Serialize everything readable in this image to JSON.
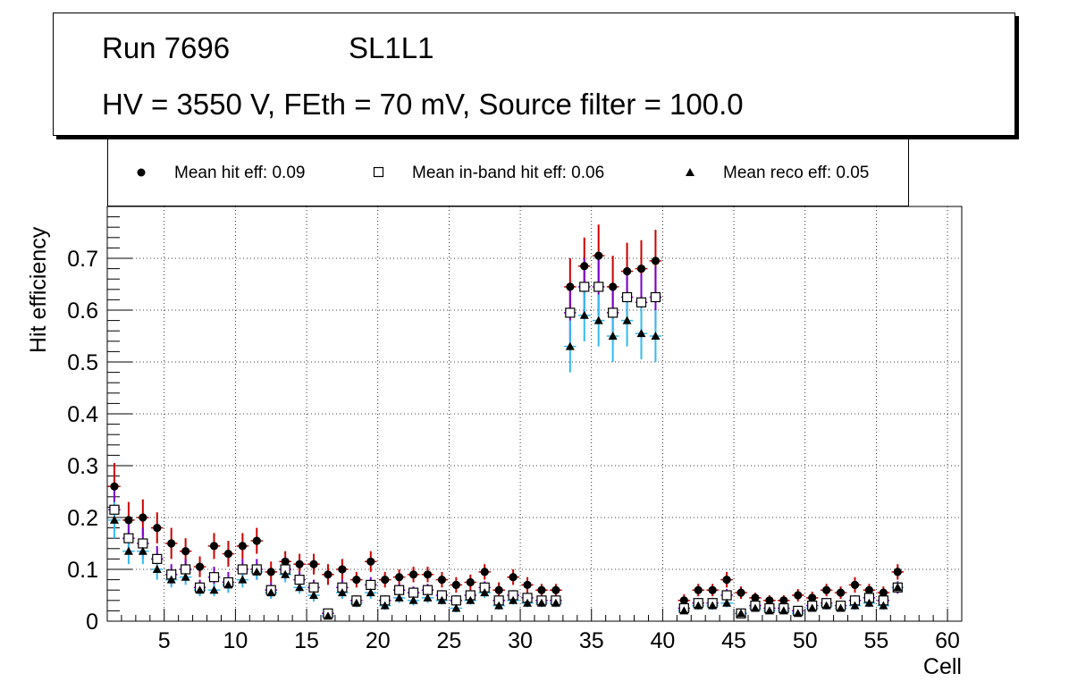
{
  "title": {
    "run_label": "Run 7696",
    "layer_label": "SL1L1",
    "conditions": "HV = 3550 V, FEth = 70 mV, Source filter = 100.0"
  },
  "legend": {
    "hit": "Mean hit  eff: 0.09",
    "inband": "Mean in-band hit eff: 0.06",
    "reco": "Mean reco eff: 0.05"
  },
  "chart_data": {
    "type": "scatter",
    "xlabel": "Cell",
    "ylabel": "Hit efficiency",
    "xlim": [
      1,
      61
    ],
    "ylim": [
      0,
      0.8
    ],
    "xticks": [
      5,
      10,
      15,
      20,
      25,
      30,
      35,
      40,
      45,
      50,
      55,
      60
    ],
    "yticks": [
      0,
      0.1,
      0.2,
      0.3,
      0.4,
      0.5,
      0.6,
      0.7
    ],
    "ytick_labels": [
      "0",
      "0.1",
      "0.2",
      "0.3",
      "0.4",
      "0.5",
      "0.6",
      "0.7"
    ],
    "grid": true,
    "series": [
      {
        "name": "Mean hit  eff: 0.09",
        "marker": "circle",
        "color": "#000000",
        "error_color": "#cc0000",
        "x": [
          1.5,
          2.5,
          3.5,
          4.5,
          5.5,
          6.5,
          7.5,
          8.5,
          9.5,
          10.5,
          11.5,
          12.5,
          13.5,
          14.5,
          15.5,
          16.5,
          17.5,
          18.5,
          19.5,
          20.5,
          21.5,
          22.5,
          23.5,
          24.5,
          25.5,
          26.5,
          27.5,
          28.5,
          29.5,
          30.5,
          31.5,
          32.5,
          33.5,
          34.5,
          35.5,
          36.5,
          37.5,
          38.5,
          39.5,
          41.5,
          42.5,
          43.5,
          44.5,
          45.5,
          46.5,
          47.5,
          48.5,
          49.5,
          50.5,
          51.5,
          52.5,
          53.5,
          54.5,
          55.5,
          56.5
        ],
        "y": [
          0.26,
          0.195,
          0.2,
          0.18,
          0.15,
          0.135,
          0.105,
          0.145,
          0.13,
          0.145,
          0.155,
          0.095,
          0.115,
          0.11,
          0.11,
          0.09,
          0.1,
          0.08,
          0.115,
          0.08,
          0.085,
          0.09,
          0.09,
          0.08,
          0.07,
          0.075,
          0.095,
          0.06,
          0.085,
          0.07,
          0.06,
          0.06,
          0.645,
          0.685,
          0.705,
          0.645,
          0.675,
          0.68,
          0.695,
          0.04,
          0.06,
          0.06,
          0.08,
          0.055,
          0.045,
          0.04,
          0.04,
          0.05,
          0.045,
          0.06,
          0.055,
          0.07,
          0.06,
          0.055,
          0.095
        ],
        "yerr": [
          0.045,
          0.035,
          0.035,
          0.03,
          0.03,
          0.025,
          0.02,
          0.025,
          0.025,
          0.025,
          0.025,
          0.02,
          0.02,
          0.02,
          0.02,
          0.02,
          0.02,
          0.015,
          0.02,
          0.015,
          0.015,
          0.015,
          0.015,
          0.015,
          0.015,
          0.015,
          0.015,
          0.015,
          0.015,
          0.015,
          0.012,
          0.012,
          0.055,
          0.055,
          0.06,
          0.06,
          0.055,
          0.055,
          0.06,
          0.012,
          0.012,
          0.012,
          0.015,
          0.012,
          0.01,
          0.01,
          0.01,
          0.012,
          0.012,
          0.012,
          0.012,
          0.015,
          0.012,
          0.012,
          0.015
        ]
      },
      {
        "name": "Mean in-band hit eff: 0.06",
        "marker": "open-square",
        "color": "#000000",
        "error_color": "#7a00cc",
        "x": [
          1.5,
          2.5,
          3.5,
          4.5,
          5.5,
          6.5,
          7.5,
          8.5,
          9.5,
          10.5,
          11.5,
          12.5,
          13.5,
          14.5,
          15.5,
          16.5,
          17.5,
          18.5,
          19.5,
          20.5,
          21.5,
          22.5,
          23.5,
          24.5,
          25.5,
          26.5,
          27.5,
          28.5,
          29.5,
          30.5,
          31.5,
          32.5,
          33.5,
          34.5,
          35.5,
          36.5,
          37.5,
          38.5,
          39.5,
          41.5,
          42.5,
          43.5,
          44.5,
          45.5,
          46.5,
          47.5,
          48.5,
          49.5,
          50.5,
          51.5,
          52.5,
          53.5,
          54.5,
          55.5,
          56.5
        ],
        "y": [
          0.215,
          0.16,
          0.15,
          0.12,
          0.09,
          0.1,
          0.065,
          0.085,
          0.075,
          0.1,
          0.1,
          0.06,
          0.1,
          0.08,
          0.065,
          0.015,
          0.065,
          0.04,
          0.07,
          0.04,
          0.06,
          0.055,
          0.06,
          0.05,
          0.04,
          0.05,
          0.065,
          0.04,
          0.05,
          0.045,
          0.04,
          0.04,
          0.595,
          0.645,
          0.645,
          0.595,
          0.625,
          0.615,
          0.625,
          0.025,
          0.035,
          0.035,
          0.05,
          0.015,
          0.03,
          0.025,
          0.025,
          0.02,
          0.03,
          0.035,
          0.03,
          0.04,
          0.045,
          0.04,
          0.065
        ],
        "yerr": [
          0.04,
          0.03,
          0.03,
          0.025,
          0.02,
          0.02,
          0.015,
          0.02,
          0.02,
          0.02,
          0.02,
          0.015,
          0.02,
          0.015,
          0.015,
          0.008,
          0.015,
          0.01,
          0.015,
          0.01,
          0.012,
          0.012,
          0.012,
          0.01,
          0.01,
          0.01,
          0.012,
          0.01,
          0.01,
          0.01,
          0.01,
          0.01,
          0.055,
          0.055,
          0.055,
          0.055,
          0.055,
          0.055,
          0.06,
          0.008,
          0.01,
          0.01,
          0.012,
          0.006,
          0.008,
          0.008,
          0.008,
          0.008,
          0.008,
          0.01,
          0.008,
          0.01,
          0.01,
          0.01,
          0.012
        ]
      },
      {
        "name": "Mean reco eff: 0.05",
        "marker": "triangle",
        "color": "#000000",
        "error_color": "#33bbee",
        "x": [
          1.5,
          2.5,
          3.5,
          4.5,
          5.5,
          6.5,
          7.5,
          8.5,
          9.5,
          10.5,
          11.5,
          12.5,
          13.5,
          14.5,
          15.5,
          16.5,
          17.5,
          18.5,
          19.5,
          20.5,
          21.5,
          22.5,
          23.5,
          24.5,
          25.5,
          26.5,
          27.5,
          28.5,
          29.5,
          30.5,
          31.5,
          32.5,
          33.5,
          34.5,
          35.5,
          36.5,
          37.5,
          38.5,
          39.5,
          41.5,
          42.5,
          43.5,
          44.5,
          45.5,
          46.5,
          47.5,
          48.5,
          49.5,
          50.5,
          51.5,
          52.5,
          53.5,
          54.5,
          55.5,
          56.5
        ],
        "y": [
          0.195,
          0.135,
          0.135,
          0.1,
          0.08,
          0.085,
          0.06,
          0.06,
          0.07,
          0.08,
          0.095,
          0.055,
          0.09,
          0.065,
          0.05,
          0.01,
          0.055,
          0.035,
          0.055,
          0.03,
          0.045,
          0.04,
          0.045,
          0.04,
          0.025,
          0.04,
          0.055,
          0.03,
          0.04,
          0.035,
          0.035,
          0.035,
          0.53,
          0.59,
          0.58,
          0.55,
          0.58,
          0.555,
          0.55,
          0.02,
          0.03,
          0.03,
          0.035,
          0.015,
          0.025,
          0.02,
          0.02,
          0.015,
          0.025,
          0.03,
          0.025,
          0.03,
          0.035,
          0.03,
          0.065
        ],
        "yerr": [
          0.035,
          0.025,
          0.025,
          0.02,
          0.015,
          0.015,
          0.012,
          0.012,
          0.015,
          0.015,
          0.015,
          0.012,
          0.015,
          0.012,
          0.012,
          0.006,
          0.012,
          0.008,
          0.012,
          0.008,
          0.01,
          0.01,
          0.01,
          0.008,
          0.008,
          0.008,
          0.01,
          0.008,
          0.008,
          0.008,
          0.008,
          0.008,
          0.05,
          0.05,
          0.05,
          0.05,
          0.05,
          0.05,
          0.05,
          0.006,
          0.008,
          0.008,
          0.008,
          0.006,
          0.006,
          0.006,
          0.006,
          0.006,
          0.006,
          0.008,
          0.006,
          0.008,
          0.008,
          0.008,
          0.01
        ]
      }
    ]
  }
}
